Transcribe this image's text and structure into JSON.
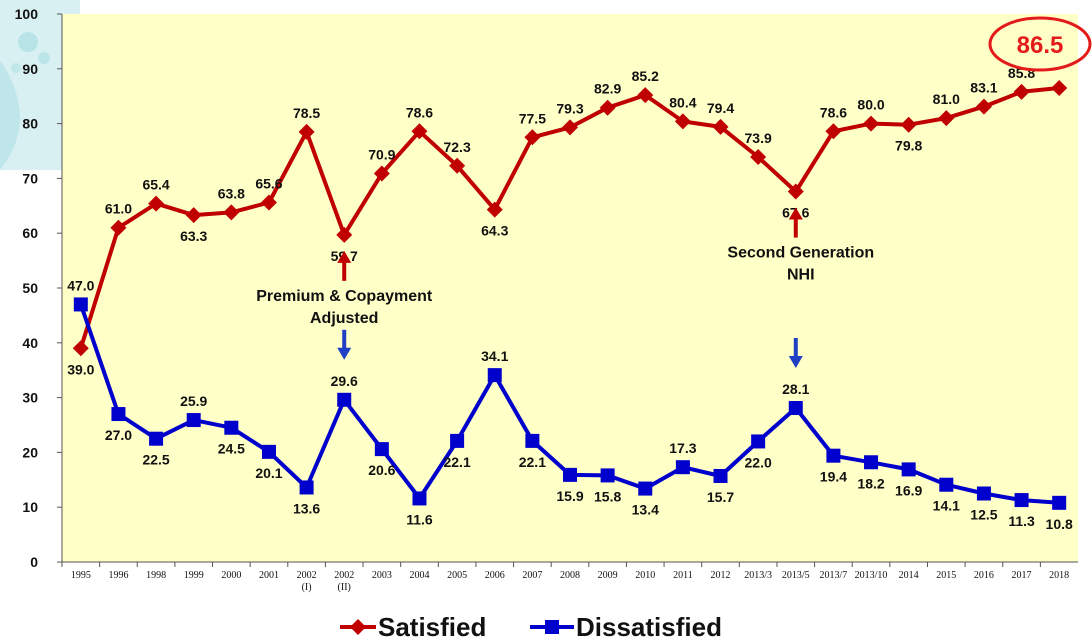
{
  "chart_data": {
    "type": "line",
    "title": "",
    "xlabel": "",
    "ylabel": "",
    "ylim": [
      0,
      100
    ],
    "yticks": [
      "0",
      "10",
      "20",
      "30",
      "40",
      "50",
      "60",
      "70",
      "80",
      "90",
      "100"
    ],
    "grid": false,
    "legend_position": "bottom",
    "categories": [
      {
        "label": "1995",
        "sub": ""
      },
      {
        "label": "1996",
        "sub": ""
      },
      {
        "label": "1998",
        "sub": ""
      },
      {
        "label": "1999",
        "sub": ""
      },
      {
        "label": "2000",
        "sub": ""
      },
      {
        "label": "2001",
        "sub": ""
      },
      {
        "label": "2002",
        "sub": "(I)"
      },
      {
        "label": "2002",
        "sub": "(II)"
      },
      {
        "label": "2003",
        "sub": ""
      },
      {
        "label": "2004",
        "sub": ""
      },
      {
        "label": "2005",
        "sub": ""
      },
      {
        "label": "2006",
        "sub": ""
      },
      {
        "label": "2007",
        "sub": ""
      },
      {
        "label": "2008",
        "sub": ""
      },
      {
        "label": "2009",
        "sub": ""
      },
      {
        "label": "2010",
        "sub": ""
      },
      {
        "label": "2011",
        "sub": ""
      },
      {
        "label": "2012",
        "sub": ""
      },
      {
        "label": "2013/3",
        "sub": ""
      },
      {
        "label": "2013/5",
        "sub": ""
      },
      {
        "label": "2013/7",
        "sub": ""
      },
      {
        "label": "2013/10",
        "sub": ""
      },
      {
        "label": "2014",
        "sub": ""
      },
      {
        "label": "2015",
        "sub": ""
      },
      {
        "label": "2016",
        "sub": ""
      },
      {
        "label": "2017",
        "sub": ""
      },
      {
        "label": "2018",
        "sub": ""
      }
    ],
    "series": [
      {
        "name": "Satisfied",
        "color": "#c00000",
        "marker": "diamond",
        "values": [
          39.0,
          61.0,
          65.4,
          63.3,
          63.8,
          65.6,
          78.5,
          59.7,
          70.9,
          78.6,
          72.3,
          64.3,
          77.5,
          79.3,
          82.9,
          85.2,
          80.4,
          79.4,
          73.9,
          67.6,
          78.6,
          80.0,
          79.8,
          81.0,
          83.1,
          85.8,
          86.5
        ],
        "labels": [
          "39.0",
          "61.0",
          "65.4",
          "63.3",
          "63.8",
          "65.6",
          "78.5",
          "59.7",
          "70.9",
          "78.6",
          "72.3",
          "64.3",
          "77.5",
          "79.3",
          "82.9",
          "85.2",
          "80.4",
          "79.4",
          "73.9",
          "67.6",
          "78.6",
          "80.0",
          "79.8",
          "81.0",
          "83.1",
          "85.8",
          "86.5"
        ]
      },
      {
        "name": "Dissatisfied",
        "color": "#0000cc",
        "marker": "square",
        "values": [
          47.0,
          27.0,
          22.5,
          25.9,
          24.5,
          20.1,
          13.6,
          29.6,
          20.6,
          11.6,
          22.1,
          34.1,
          22.1,
          15.9,
          15.8,
          13.4,
          17.3,
          15.7,
          22.0,
          28.1,
          19.4,
          18.2,
          16.9,
          14.1,
          12.5,
          11.3,
          10.8
        ],
        "labels": [
          "47.0",
          "27.0",
          "22.5",
          "25.9",
          "24.5",
          "20.1",
          "13.6",
          "29.6",
          "20.6",
          "11.6",
          "22.1",
          "34.1",
          "22.1",
          "15.9",
          "15.8",
          "13.4",
          "17.3",
          "15.7",
          "22.0",
          "28.1",
          "19.4",
          "18.2",
          "16.9",
          "14.1",
          "12.5",
          "11.3",
          "10.8"
        ]
      }
    ],
    "annotations": [
      {
        "lines": [
          "Premium & Copayment",
          "Adjusted"
        ],
        "category_index": 7
      },
      {
        "lines": [
          "Second Generation",
          "NHI"
        ],
        "category_index": 19
      }
    ],
    "highlight": {
      "text": "86.5",
      "color": "#e31b1b"
    }
  },
  "colors": {
    "plot_background": "#ffffc8",
    "up_arrow": "#c00000",
    "down_arrow": "#1f3fc4"
  }
}
